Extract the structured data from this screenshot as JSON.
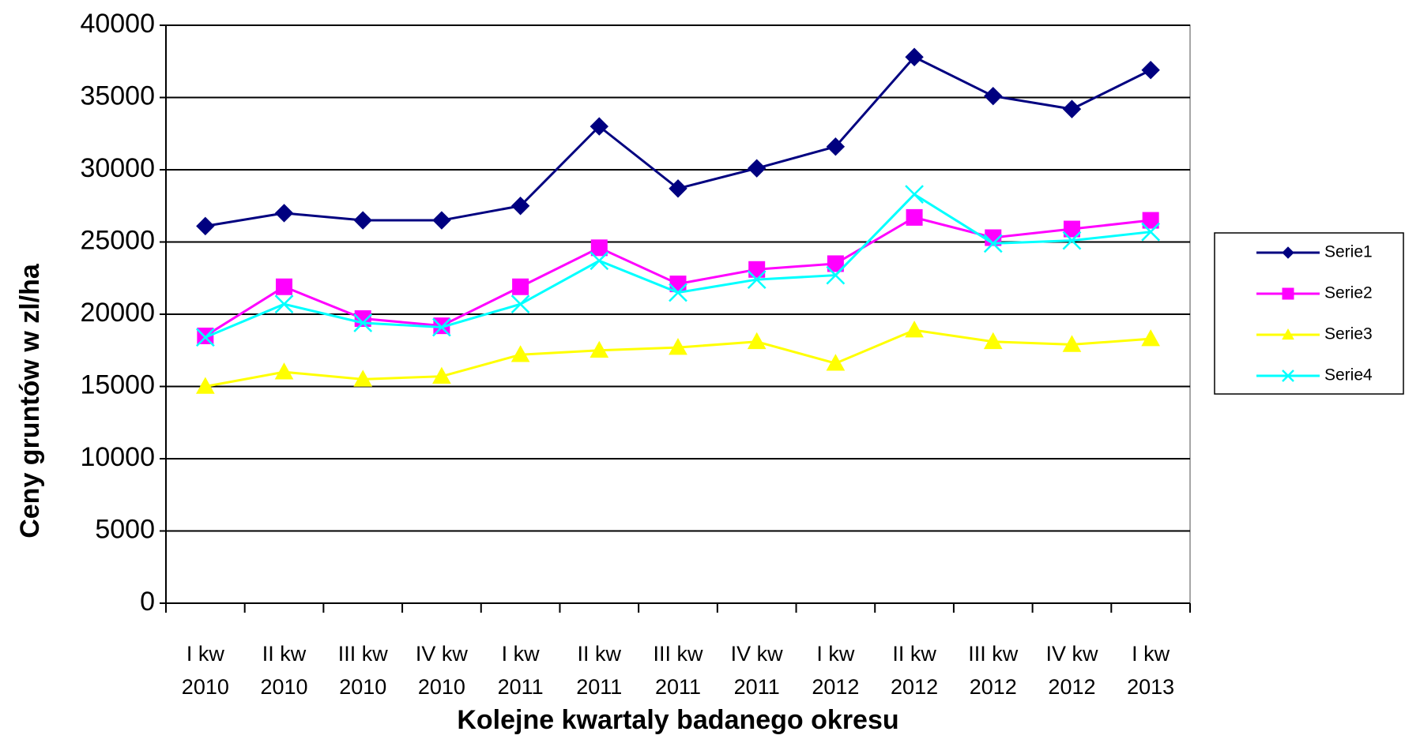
{
  "chart_data": {
    "type": "line",
    "x_label": "Kolejne kwartaly badanego okresu",
    "y_label": "Ceny gruntów w zl/ha",
    "categories": [
      "I kw\n2010",
      "II kw\n2010",
      "III kw\n2010",
      "IV kw\n2010",
      "I kw\n2011",
      "II kw\n2011",
      "III kw\n2011",
      "IV kw\n2011",
      "I kw\n2012",
      "II kw\n2012",
      "III kw\n2012",
      "IV kw\n2012",
      "I kw\n2013"
    ],
    "series": [
      {
        "name": "Serie1",
        "color": "#000080",
        "marker": "diamond",
        "values": [
          26100,
          27000,
          26500,
          26500,
          27500,
          33000,
          28700,
          30100,
          31600,
          37800,
          35100,
          34200,
          36900
        ]
      },
      {
        "name": "Serie2",
        "color": "#ff00ff",
        "marker": "square",
        "values": [
          18500,
          21900,
          19700,
          19200,
          21900,
          24600,
          22100,
          23100,
          23500,
          26700,
          25300,
          25900,
          26500
        ]
      },
      {
        "name": "Serie3",
        "color": "#ffff00",
        "marker": "triangle",
        "values": [
          15000,
          16000,
          15500,
          15700,
          17200,
          17500,
          17700,
          18100,
          16600,
          18900,
          18100,
          17900,
          18300
        ]
      },
      {
        "name": "Serie4",
        "color": "#00ffff",
        "marker": "x",
        "values": [
          18400,
          20700,
          19400,
          19100,
          20700,
          23700,
          21500,
          22400,
          22700,
          28300,
          24900,
          25100,
          25700
        ]
      }
    ],
    "ylim": [
      0,
      40000
    ],
    "yticks": [
      0,
      5000,
      10000,
      15000,
      20000,
      25000,
      30000,
      35000,
      40000
    ],
    "grid": true,
    "legend": "right"
  }
}
